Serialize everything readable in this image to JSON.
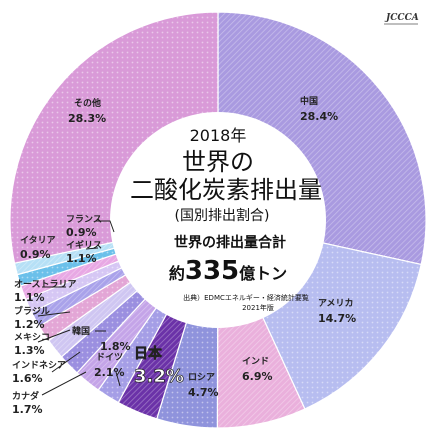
{
  "logo_text": "JCCCA",
  "center": {
    "year": "2018年",
    "title_line1": "世界の",
    "title_line2": "二酸化炭素排出量",
    "subtitle": "(国別排出割合)",
    "total_label": "世界の排出量合計",
    "total_prefix": "約",
    "total_value": "335",
    "total_unit": "億トン",
    "source_line1": "出典）EDMCエネルギー・経済統計要覧",
    "source_line2": "2021年版"
  },
  "chart_data": {
    "type": "pie",
    "unit": "%",
    "slices": [
      {
        "label": "中国",
        "value": 28.4,
        "value_text": "28.4%",
        "color": "#a99ae0"
      },
      {
        "label": "アメリカ",
        "value": 14.7,
        "value_text": "14.7%",
        "color": "#b7bdf0"
      },
      {
        "label": "インド",
        "value": 6.9,
        "value_text": "6.9%",
        "color": "#eab0dc"
      },
      {
        "label": "ロシア",
        "value": 4.7,
        "value_text": "4.7%",
        "color": "#8f93dc"
      },
      {
        "label": "日本",
        "value": 3.2,
        "value_text": "3.2%",
        "color": "#6b32a8"
      },
      {
        "label": "韓国",
        "value": 1.8,
        "value_text": "1.8%",
        "color": "#a59ee6"
      },
      {
        "label": "ドイツ",
        "value": 2.1,
        "value_text": "2.1%",
        "color": "#c4a4e8"
      },
      {
        "label": "カナダ",
        "value": 1.7,
        "value_text": "1.7%",
        "color": "#9b8fe0"
      },
      {
        "label": "インドネシア",
        "value": 1.6,
        "value_text": "1.6%",
        "color": "#cfc6f2"
      },
      {
        "label": "メキシコ",
        "value": 1.3,
        "value_text": "1.3%",
        "color": "#e3a6d6"
      },
      {
        "label": "ブラジル",
        "value": 1.2,
        "value_text": "1.2%",
        "color": "#a9a2ea"
      },
      {
        "label": "オーストラリア",
        "value": 1.1,
        "value_text": "1.1%",
        "color": "#d6c7f4"
      },
      {
        "label": "イギリス",
        "value": 1.1,
        "value_text": "1.1%",
        "color": "#e8a8e4"
      },
      {
        "label": "イタリア",
        "value": 0.9,
        "value_text": "0.9%",
        "color": "#6bc0ea"
      },
      {
        "label": "フランス",
        "value": 0.9,
        "value_text": "0.9%",
        "color": "#b6e0f6"
      },
      {
        "label": "その他",
        "value": 28.3,
        "value_text": "28.3%",
        "color": "#d99ad8"
      }
    ]
  }
}
